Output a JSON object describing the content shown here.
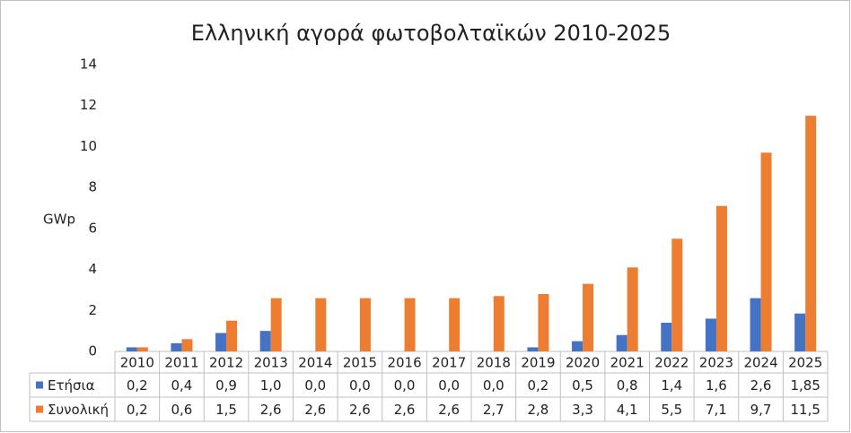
{
  "chart_data": {
    "type": "bar",
    "title": "Ελληνική αγορά φωτοβολταϊκών 2010-2025",
    "y_label": "GWp",
    "categories": [
      "2010",
      "2011",
      "2012",
      "2013",
      "2014",
      "2015",
      "2016",
      "2017",
      "2018",
      "2019",
      "2020",
      "2021",
      "2022",
      "2023",
      "2024",
      "2025"
    ],
    "series": [
      {
        "name": "Ετήσια",
        "color": "#4472c4",
        "values": [
          0.2,
          0.4,
          0.9,
          1.0,
          0.0,
          0.0,
          0.0,
          0.0,
          0.0,
          0.2,
          0.5,
          0.8,
          1.4,
          1.6,
          2.6,
          1.85
        ],
        "value_labels": [
          "0,2",
          "0,4",
          "0,9",
          "1,0",
          "0,0",
          "0,0",
          "0,0",
          "0,0",
          "0,0",
          "0,2",
          "0,5",
          "0,8",
          "1,4",
          "1,6",
          "2,6",
          "1,85"
        ]
      },
      {
        "name": "Συνολική",
        "color": "#ed7d31",
        "values": [
          0.2,
          0.6,
          1.5,
          2.6,
          2.6,
          2.6,
          2.6,
          2.6,
          2.7,
          2.8,
          3.3,
          4.1,
          5.5,
          7.1,
          9.7,
          11.5
        ],
        "value_labels": [
          "0,2",
          "0,6",
          "1,5",
          "2,6",
          "2,6",
          "2,6",
          "2,6",
          "2,6",
          "2,7",
          "2,8",
          "3,3",
          "4,1",
          "5,5",
          "7,1",
          "9,7",
          "11,5"
        ]
      }
    ],
    "ylim": [
      0,
      14
    ],
    "yticks": [
      0,
      2,
      4,
      6,
      8,
      10,
      12,
      14
    ],
    "grid": false
  }
}
